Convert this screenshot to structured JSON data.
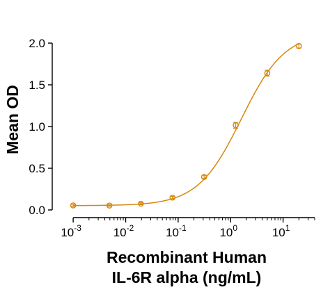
{
  "chart_data": {
    "type": "scatter",
    "title": "",
    "xlabel_lines": [
      "Recombinant Human",
      "IL-6R alpha (ng/mL)"
    ],
    "ylabel": "Mean OD",
    "x_scale": "log",
    "xlim": [
      0.00063,
      40
    ],
    "ylim": [
      0,
      2.1
    ],
    "x_ticks": [
      {
        "value": 0.001,
        "base": "10",
        "exp": "-3"
      },
      {
        "value": 0.01,
        "base": "10",
        "exp": "-2"
      },
      {
        "value": 0.1,
        "base": "10",
        "exp": "-1"
      },
      {
        "value": 1,
        "base": "10",
        "exp": "0"
      },
      {
        "value": 10,
        "base": "10",
        "exp": "1"
      }
    ],
    "y_ticks": [
      {
        "value": 0.0,
        "label": "0.0"
      },
      {
        "value": 0.5,
        "label": "0.5"
      },
      {
        "value": 1.0,
        "label": "1.0"
      },
      {
        "value": 1.5,
        "label": "1.5"
      },
      {
        "value": 2.0,
        "label": "2.0"
      }
    ],
    "grid": false,
    "color": "#d4880f",
    "series": [
      {
        "x": [
          0.001,
          0.0049,
          0.0195,
          0.078,
          0.3125,
          1.25,
          5,
          20
        ],
        "y": [
          0.055,
          0.053,
          0.075,
          0.148,
          0.395,
          1.015,
          1.64,
          1.965
        ],
        "err": [
          0.012,
          0.01,
          0.012,
          0.015,
          0.02,
          0.035,
          0.035,
          0.025
        ]
      }
    ],
    "fit": {
      "type": "4PL",
      "bottom": 0.052,
      "top": 2.13,
      "ec50": 1.6,
      "hill": 1.05
    }
  }
}
